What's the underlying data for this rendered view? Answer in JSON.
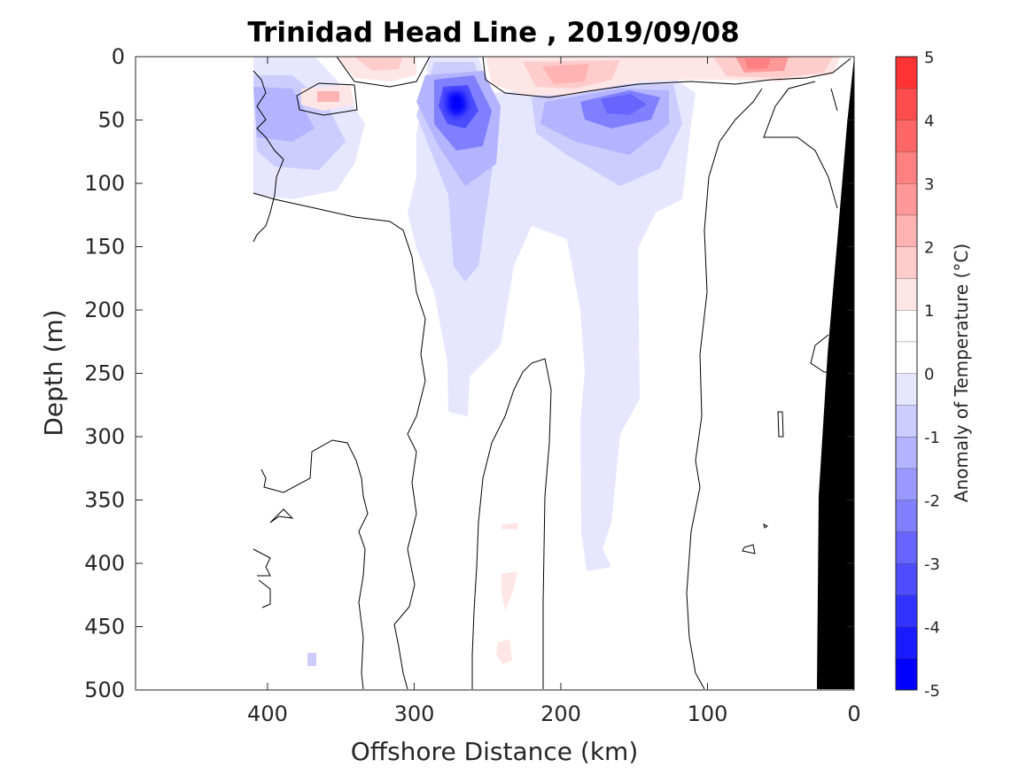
{
  "chart_data": {
    "type": "heatmap",
    "subtype": "filled-contour",
    "title": "Trinidad Head Line , 2019/09/08",
    "xlabel": "Offshore Distance (km)",
    "ylabel": "Depth (m)",
    "xlim": [
      490,
      0
    ],
    "ylim": [
      0,
      500
    ],
    "x_reversed": true,
    "y_reversed": true,
    "x_ticks": [
      400,
      300,
      200,
      100,
      0
    ],
    "y_ticks": [
      0,
      50,
      100,
      150,
      200,
      250,
      300,
      350,
      400,
      450,
      500
    ],
    "data_extent_x": [
      0,
      410
    ],
    "colorbar": {
      "label": "Anomaly of Temperature (°C)",
      "ticks": [
        5,
        4,
        3,
        2,
        1,
        0,
        -1,
        -2,
        -3,
        -4,
        -5
      ],
      "range": [
        -5,
        5
      ],
      "levels": [
        -5,
        -4.5,
        -4,
        -3.5,
        -3,
        -2.5,
        -2,
        -1.5,
        -1,
        -0.5,
        0,
        0.5,
        1,
        1.5,
        2,
        2.5,
        3,
        3.5,
        4,
        4.5,
        5
      ],
      "colors": [
        "#0000ff",
        "#1a1aff",
        "#3333ff",
        "#4d4dff",
        "#6666ff",
        "#8080ff",
        "#9999ff",
        "#b3b3ff",
        "#ccccff",
        "#e6e6ff",
        "#ffffff",
        "#ffffff",
        "#ffe6e6",
        "#ffcccc",
        "#ffb3b3",
        "#ff9999",
        "#ff8080",
        "#ff6666",
        "#ff4d4d",
        "#ff3333",
        "#ff0000"
      ]
    },
    "features": [
      {
        "name": "cold core near 270 km",
        "x": 270,
        "depth": 35,
        "anomaly": -3.5
      },
      {
        "name": "cold patch near 150 km",
        "x": 150,
        "depth": 40,
        "anomaly": -2.5
      },
      {
        "name": "cold patch near 410 km",
        "x": 405,
        "depth": 40,
        "anomaly": -2
      },
      {
        "name": "warm patch near 70 km",
        "x": 70,
        "depth": 5,
        "anomaly": 2
      },
      {
        "name": "warm patch near 200 km",
        "x": 200,
        "depth": 15,
        "anomaly": 1.5
      },
      {
        "name": "warm patch near 350 km",
        "x": 350,
        "depth": 30,
        "anomaly": 1
      },
      {
        "name": "bathymetry (seafloor)",
        "x_at_surface": 0,
        "x_at_500m": 25
      }
    ]
  }
}
